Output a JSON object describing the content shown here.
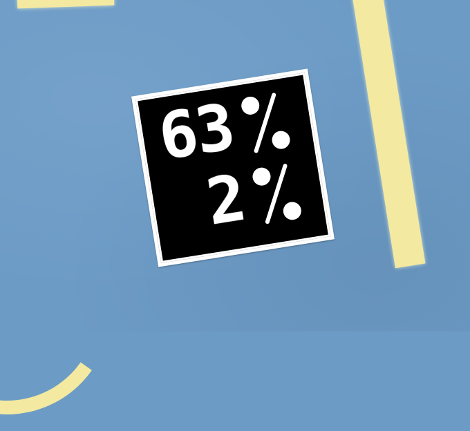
{
  "display": {
    "readouts": [
      {
        "value": "63",
        "unit": "%"
      },
      {
        "value": "2",
        "unit": "%"
      }
    ]
  }
}
